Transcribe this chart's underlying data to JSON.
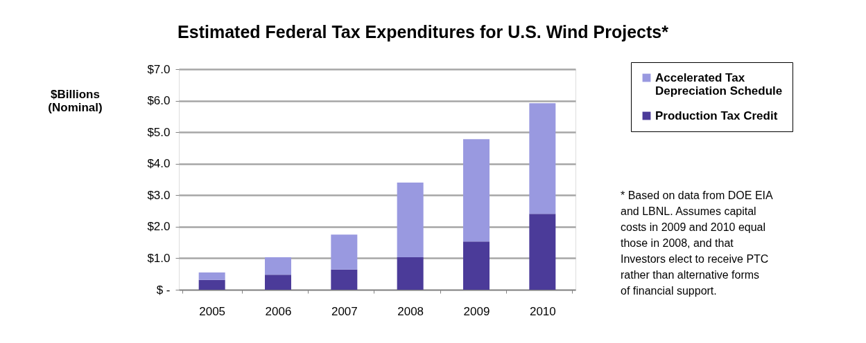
{
  "chart_data": {
    "type": "bar",
    "title": "Estimated  Federal Tax Expenditures for U.S. Wind Projects*",
    "ylabel": "$Billions (Nominal)",
    "categories": [
      "2005",
      "2006",
      "2007",
      "2008",
      "2009",
      "2010"
    ],
    "stacked": true,
    "series": [
      {
        "name": "Production Tax Credit",
        "color": "#4b3b99",
        "values": [
          0.31,
          0.48,
          0.64,
          1.03,
          1.53,
          2.41
        ]
      },
      {
        "name": "Accelerated Tax Depreciation Schedule",
        "color": "#9999e0",
        "values": [
          0.24,
          0.55,
          1.11,
          2.37,
          3.25,
          3.51
        ]
      }
    ],
    "ylim": [
      0,
      7
    ],
    "yticks": [
      {
        "value": 0,
        "label": "$ -"
      },
      {
        "value": 1,
        "label": "$1.0"
      },
      {
        "value": 2,
        "label": "$2.0"
      },
      {
        "value": 3,
        "label": "$3.0"
      },
      {
        "value": 4,
        "label": "$4.0"
      },
      {
        "value": 5,
        "label": "$5.0"
      },
      {
        "value": 6,
        "label": "$6.0"
      },
      {
        "value": 7,
        "label": "$7.0"
      }
    ],
    "grid": "y",
    "legend": "top right",
    "annotations": [
      "* Based on data from DOE EIA and LBNL. Assumes capital costs in 2009 and 2010 equal those in 2008, and that Investors elect to receive PTC rather than alternative forms of financial support."
    ]
  }
}
